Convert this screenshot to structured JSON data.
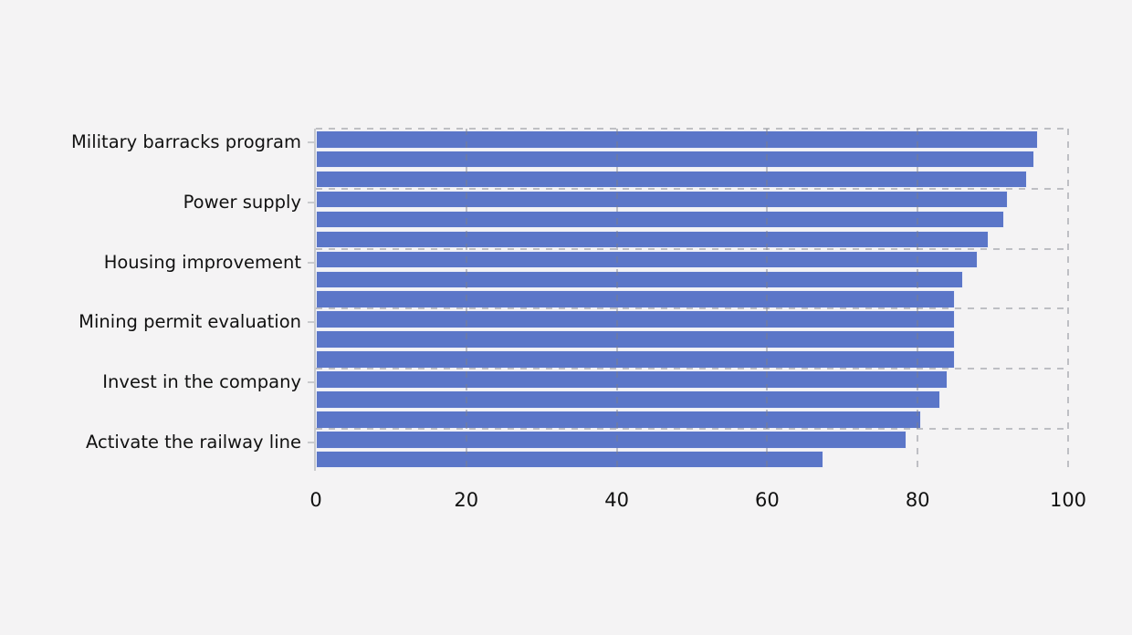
{
  "chart_data": {
    "type": "bar",
    "orientation": "horizontal",
    "title": "",
    "xlabel": "",
    "ylabel": "",
    "xlim": [
      0,
      100
    ],
    "x_ticks": [
      0,
      20,
      40,
      60,
      80,
      100
    ],
    "x_tick_labels": [
      "0",
      "20",
      "40",
      "60",
      "80",
      "100"
    ],
    "grid": "dashed",
    "legend": "none",
    "bar_color": "#5b76c8",
    "bar_edge_color": "#eceef6",
    "background_color": "#f4f3f4",
    "grid_color": "#c6c8ce",
    "axis_text_color": "#111111",
    "groups": [
      {
        "label": "Military barracks program",
        "values": [
          96,
          95.5,
          94.5
        ]
      },
      {
        "label": "Power supply",
        "values": [
          92,
          91.5,
          89.5
        ]
      },
      {
        "label": "Housing improvement",
        "values": [
          88,
          86,
          85
        ]
      },
      {
        "label": "Mining permit evaluation",
        "values": [
          85,
          85,
          85
        ]
      },
      {
        "label": "Invest in the company",
        "values": [
          84,
          83,
          80.5
        ]
      },
      {
        "label": "Activate the railway line",
        "values": [
          78.5,
          67.5
        ]
      }
    ]
  }
}
